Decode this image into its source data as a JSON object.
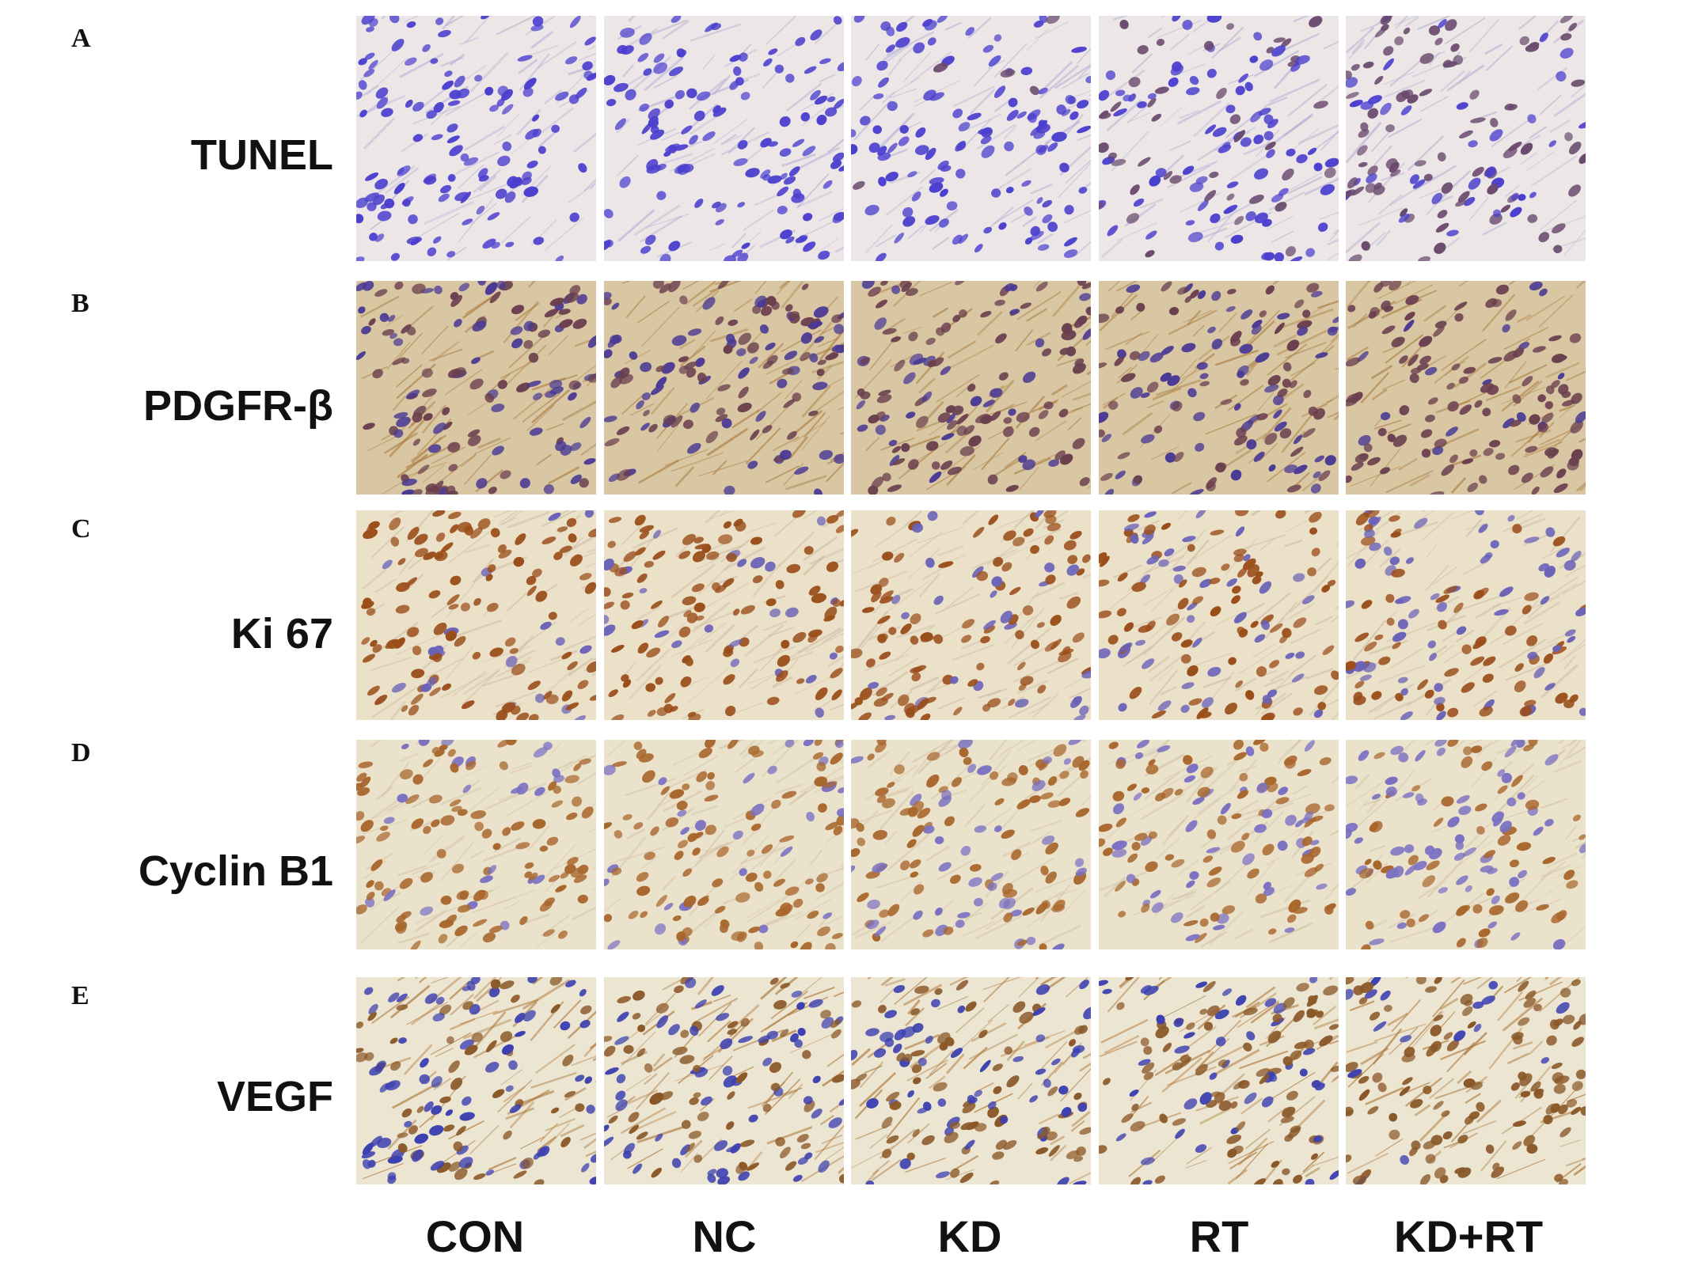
{
  "figure": {
    "rows": [
      {
        "letter": "A",
        "label": "TUNEL",
        "stain": {
          "bg": "#ece7e6",
          "fiber": "#b7aed4",
          "primary": "#4b3fce",
          "secondary": "#6a4a6e",
          "brown_fraction": [
            0.0,
            0.0,
            0.04,
            0.4,
            0.7
          ]
        }
      },
      {
        "letter": "B",
        "label": "PDGFR-β",
        "stain": {
          "bg": "#d9c7a3",
          "fiber": "#a87a3e",
          "primary": "#4a3a94",
          "secondary": "#6a3f4e",
          "brown_fraction": [
            0.5,
            0.45,
            0.3,
            0.55,
            0.15
          ]
        }
      },
      {
        "letter": "C",
        "label": "Ki 67",
        "stain": {
          "bg": "#ebe0c8",
          "fiber": "#cdbba3",
          "primary": "#9a4e1a",
          "secondary": "#6a62b8",
          "brown_fraction": [
            0.85,
            0.8,
            0.8,
            0.65,
            0.5
          ]
        }
      },
      {
        "letter": "D",
        "label": "Cyclin B1",
        "stain": {
          "bg": "#ebe2cc",
          "fiber": "#d2c2a6",
          "primary": "#a8662c",
          "secondary": "#7a70c2",
          "brown_fraction": [
            0.8,
            0.75,
            0.7,
            0.6,
            0.5
          ]
        }
      },
      {
        "letter": "E",
        "label": "VEGF",
        "stain": {
          "bg": "#ece5d2",
          "fiber": "#a8702e",
          "primary": "#3c40b0",
          "secondary": "#8a5828",
          "brown_fraction": [
            0.6,
            0.55,
            0.45,
            0.45,
            0.15
          ]
        }
      }
    ],
    "columns": [
      "CON",
      "NC",
      "KD",
      "RT",
      "KD+RT"
    ]
  }
}
